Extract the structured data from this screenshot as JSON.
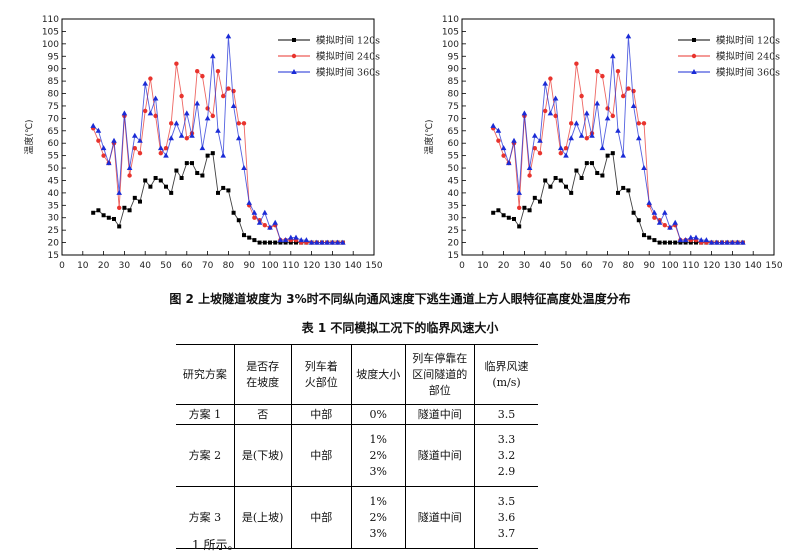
{
  "figure": {
    "caption": "图 2  上坡隧道坡度为 3%时不同纵向通风速度下逃生通道上方人眼特征高度处温度分布"
  },
  "chart_data": [
    {
      "type": "line",
      "ylabel": "温度(℃)",
      "xlim": [
        0,
        150
      ],
      "ylim": [
        15,
        110
      ],
      "x_ticks": [
        "0",
        "10",
        "20",
        "30",
        "40",
        "50",
        "60",
        "70",
        "80",
        "90",
        "100",
        "110",
        "120",
        "130",
        "140",
        "150"
      ],
      "y_ticks": [
        "15",
        "20",
        "25",
        "30",
        "35",
        "40",
        "45",
        "50",
        "55",
        "60",
        "65",
        "70",
        "75",
        "80",
        "85",
        "90",
        "95",
        "100",
        "105",
        "110"
      ],
      "legend_position": "top-right",
      "series": [
        {
          "name": "模拟时间 120s",
          "color": "#000000",
          "marker": "square",
          "x": [
            15,
            17.5,
            20,
            22.5,
            25,
            27.5,
            30,
            32.5,
            35,
            37.5,
            40,
            42.5,
            45,
            47.5,
            50,
            52.5,
            55,
            57.5,
            60,
            62.5,
            65,
            67.5,
            70,
            72.5,
            75,
            77.5,
            80,
            82.5,
            85,
            87.5,
            90,
            92.5,
            95,
            97.5,
            100,
            102.5,
            105,
            107.5,
            110,
            112.5,
            115,
            117.5,
            120,
            122.5,
            125,
            127.5,
            130,
            132.5,
            135
          ],
          "values": [
            32,
            33,
            31,
            30,
            29.5,
            26.5,
            34,
            33,
            38,
            36.5,
            45,
            42.5,
            46,
            45,
            42.5,
            40,
            49,
            46,
            52,
            52,
            48,
            47,
            55,
            56,
            40,
            42,
            41,
            32,
            29,
            23,
            22,
            21,
            20,
            20,
            20,
            20,
            20,
            20,
            20,
            20,
            20,
            20,
            20,
            20,
            20,
            20,
            20,
            20,
            20
          ]
        },
        {
          "name": "模拟时间 240s",
          "color": "#e8332d",
          "marker": "circle",
          "x": [
            15,
            17.5,
            20,
            22.5,
            25,
            27.5,
            30,
            32.5,
            35,
            37.5,
            40,
            42.5,
            45,
            47.5,
            50,
            52.5,
            55,
            57.5,
            60,
            62.5,
            65,
            67.5,
            70,
            72.5,
            75,
            77.5,
            80,
            82.5,
            85,
            87.5,
            90,
            92.5,
            95,
            97.5,
            100,
            102.5,
            105,
            107.5,
            110,
            112.5,
            115,
            117.5,
            120,
            122.5,
            125,
            127.5,
            130,
            132.5,
            135
          ],
          "values": [
            66,
            61,
            55,
            52,
            60,
            34,
            71,
            47,
            58,
            56,
            73,
            86,
            71,
            56,
            58,
            68,
            92,
            79,
            62,
            64,
            89,
            87,
            74,
            71,
            89,
            79,
            82,
            81,
            68,
            68,
            35,
            30,
            29,
            27,
            26,
            27,
            21,
            21,
            21,
            21,
            20,
            20,
            20,
            20,
            20,
            20,
            20,
            20,
            20
          ]
        },
        {
          "name": "模拟时间 360s",
          "color": "#1a2bd6",
          "marker": "triangle",
          "x": [
            15,
            17.5,
            20,
            22.5,
            25,
            27.5,
            30,
            32.5,
            35,
            37.5,
            40,
            42.5,
            45,
            47.5,
            50,
            52.5,
            55,
            57.5,
            60,
            62.5,
            65,
            67.5,
            70,
            72.5,
            75,
            77.5,
            80,
            82.5,
            85,
            87.5,
            90,
            92.5,
            95,
            97.5,
            100,
            102.5,
            105,
            107.5,
            110,
            112.5,
            115,
            117.5,
            120,
            122.5,
            125,
            127.5,
            130,
            132.5,
            135
          ],
          "values": [
            67,
            65,
            58,
            52,
            61,
            40,
            72,
            50,
            63,
            61,
            84,
            72,
            78,
            58,
            55,
            62,
            68,
            63,
            72,
            63,
            76,
            58,
            70,
            95,
            65,
            55,
            103,
            75,
            62,
            50,
            36,
            32,
            28,
            32,
            26,
            28,
            21,
            21,
            22,
            22,
            21,
            21,
            20,
            20,
            20,
            20,
            20,
            20,
            20
          ]
        }
      ]
    },
    {
      "type": "line",
      "ylabel": "温度(℃)",
      "xlim": [
        0,
        150
      ],
      "ylim": [
        15,
        110
      ],
      "x_ticks": [
        "0",
        "10",
        "20",
        "30",
        "40",
        "50",
        "60",
        "70",
        "80",
        "90",
        "100",
        "110",
        "120",
        "130",
        "140",
        "150"
      ],
      "y_ticks": [
        "15",
        "20",
        "25",
        "30",
        "35",
        "40",
        "45",
        "50",
        "55",
        "60",
        "65",
        "70",
        "75",
        "80",
        "85",
        "90",
        "95",
        "100",
        "105",
        "110"
      ],
      "legend_position": "top-right",
      "series": [
        {
          "name": "模拟时间 120s",
          "color": "#000000",
          "marker": "square",
          "x": [
            15,
            17.5,
            20,
            22.5,
            25,
            27.5,
            30,
            32.5,
            35,
            37.5,
            40,
            42.5,
            45,
            47.5,
            50,
            52.5,
            55,
            57.5,
            60,
            62.5,
            65,
            67.5,
            70,
            72.5,
            75,
            77.5,
            80,
            82.5,
            85,
            87.5,
            90,
            92.5,
            95,
            97.5,
            100,
            102.5,
            105,
            107.5,
            110,
            112.5,
            115,
            117.5,
            120,
            122.5,
            125,
            127.5,
            130,
            132.5,
            135
          ],
          "values": [
            32,
            33,
            31,
            30,
            29.5,
            26.5,
            34,
            33,
            38,
            36.5,
            45,
            42.5,
            46,
            45,
            42.5,
            40,
            49,
            46,
            52,
            52,
            48,
            47,
            55,
            56,
            40,
            42,
            41,
            32,
            29,
            23,
            22,
            21,
            20,
            20,
            20,
            20,
            20,
            20,
            20,
            20,
            20,
            20,
            20,
            20,
            20,
            20,
            20,
            20,
            20
          ]
        },
        {
          "name": "模拟时间 240s",
          "color": "#e8332d",
          "marker": "circle",
          "x": [
            15,
            17.5,
            20,
            22.5,
            25,
            27.5,
            30,
            32.5,
            35,
            37.5,
            40,
            42.5,
            45,
            47.5,
            50,
            52.5,
            55,
            57.5,
            60,
            62.5,
            65,
            67.5,
            70,
            72.5,
            75,
            77.5,
            80,
            82.5,
            85,
            87.5,
            90,
            92.5,
            95,
            97.5,
            100,
            102.5,
            105,
            107.5,
            110,
            112.5,
            115,
            117.5,
            120,
            122.5,
            125,
            127.5,
            130,
            132.5,
            135
          ],
          "values": [
            66,
            61,
            55,
            52,
            60,
            34,
            71,
            47,
            58,
            56,
            73,
            86,
            71,
            56,
            58,
            68,
            92,
            79,
            62,
            64,
            89,
            87,
            74,
            71,
            89,
            79,
            82,
            81,
            68,
            68,
            35,
            30,
            29,
            27,
            26,
            27,
            21,
            21,
            21,
            21,
            20,
            20,
            20,
            20,
            20,
            20,
            20,
            20,
            20
          ]
        },
        {
          "name": "模拟时间 360s",
          "color": "#1a2bd6",
          "marker": "triangle",
          "x": [
            15,
            17.5,
            20,
            22.5,
            25,
            27.5,
            30,
            32.5,
            35,
            37.5,
            40,
            42.5,
            45,
            47.5,
            50,
            52.5,
            55,
            57.5,
            60,
            62.5,
            65,
            67.5,
            70,
            72.5,
            75,
            77.5,
            80,
            82.5,
            85,
            87.5,
            90,
            92.5,
            95,
            97.5,
            100,
            102.5,
            105,
            107.5,
            110,
            112.5,
            115,
            117.5,
            120,
            122.5,
            125,
            127.5,
            130,
            132.5,
            135
          ],
          "values": [
            67,
            65,
            58,
            52,
            61,
            40,
            72,
            50,
            63,
            61,
            84,
            72,
            78,
            58,
            55,
            62,
            68,
            63,
            72,
            63,
            76,
            58,
            70,
            95,
            65,
            55,
            103,
            75,
            62,
            50,
            36,
            32,
            28,
            32,
            26,
            28,
            21,
            21,
            22,
            22,
            21,
            21,
            20,
            20,
            20,
            20,
            20,
            20,
            20
          ]
        }
      ]
    }
  ],
  "table": {
    "caption": "表 1  不同模拟工况下的临界风速大小",
    "headers": [
      "研究方案",
      "是否存在坡度",
      "列车着火部位",
      "坡度大小",
      "列车停靠在区间隧道的部位",
      "临界风速(m/s)"
    ],
    "rows": [
      {
        "plan": "方案 1",
        "slope": "否",
        "fire": "中部",
        "grades": [
          "0%"
        ],
        "stop": "隧道中间",
        "speeds": [
          "3.5"
        ]
      },
      {
        "plan": "方案 2",
        "slope": "是(下坡)",
        "fire": "中部",
        "grades": [
          "1%",
          "2%",
          "3%"
        ],
        "stop": "隧道中间",
        "speeds": [
          "3.3",
          "3.2",
          "2.9"
        ]
      },
      {
        "plan": "方案 3",
        "slope": "是(上坡)",
        "fire": "中部",
        "grades": [
          "1%",
          "2%",
          "3%"
        ],
        "stop": "隧道中间",
        "speeds": [
          "3.5",
          "3.6",
          "3.7"
        ]
      }
    ]
  },
  "body_text": "1 所示。"
}
